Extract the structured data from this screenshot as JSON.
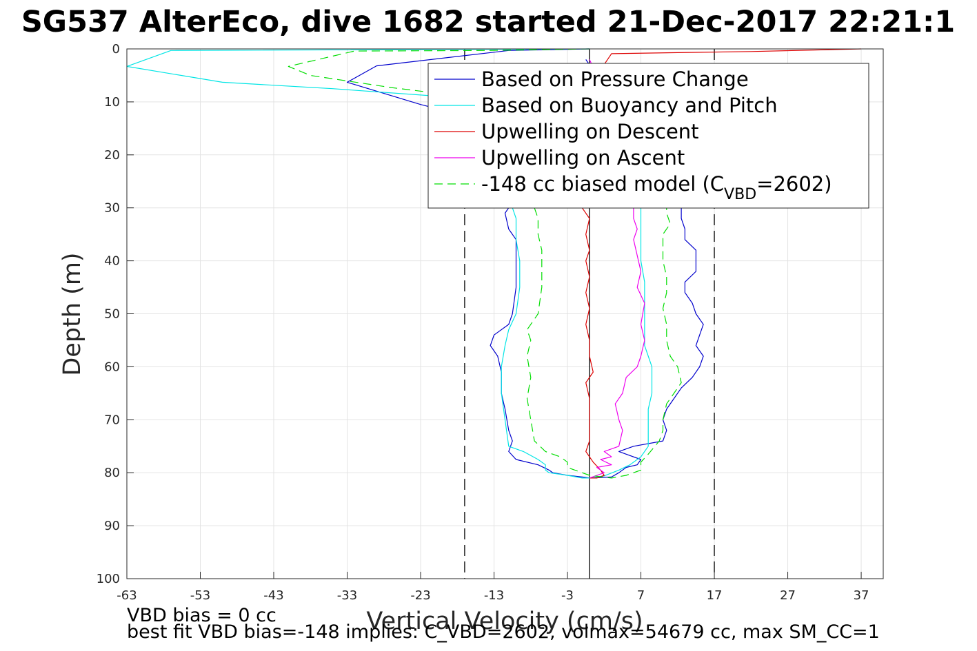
{
  "chart_data": {
    "type": "line",
    "title": "SG537 AlterEco, dive 1682 started 21-Dec-2017 22:21:1",
    "xlabel": "Vertical Velocity (cm/s)",
    "ylabel": "Depth (m)",
    "xlim": [
      -63,
      40
    ],
    "ylim": [
      0,
      100
    ],
    "y_reversed": true,
    "grid": true,
    "legend_position": "top-right",
    "xticks": [
      "-63",
      "-53",
      "-43",
      "-33",
      "-23",
      "-13",
      "-3",
      "7",
      "17",
      "27",
      "37"
    ],
    "xtick_values": [
      -63,
      -53,
      -43,
      -33,
      -23,
      -13,
      -3,
      7,
      17,
      27,
      37
    ],
    "yticks": [
      "0",
      "10",
      "20",
      "30",
      "40",
      "50",
      "60",
      "70",
      "80",
      "90",
      "100"
    ],
    "ytick_values": [
      0,
      10,
      20,
      30,
      40,
      50,
      60,
      70,
      80,
      90,
      100
    ],
    "vertical_lines": [
      {
        "x": -17,
        "style": "dashed",
        "color": "#000000"
      },
      {
        "x": 0,
        "style": "solid",
        "color": "#000000"
      },
      {
        "x": 17,
        "style": "dashed",
        "color": "#000000"
      }
    ],
    "series": [
      {
        "name": "Based on Pressure Change",
        "color": "#0000cc",
        "dash": "solid",
        "points": [
          [
            0,
            0
          ],
          [
            -11,
            0.3
          ],
          [
            -29,
            3.2
          ],
          [
            -33,
            6.3
          ],
          [
            -23,
            10.5
          ],
          [
            -13,
            14
          ],
          [
            -12,
            22
          ],
          [
            -11,
            28
          ],
          [
            -11,
            30
          ],
          [
            -11.5,
            31
          ],
          [
            -11,
            34
          ],
          [
            -10,
            36
          ],
          [
            -10,
            40
          ],
          [
            -10,
            45
          ],
          [
            -10.5,
            50
          ],
          [
            -11,
            52
          ],
          [
            -13,
            54
          ],
          [
            -13.5,
            56
          ],
          [
            -12.5,
            58
          ],
          [
            -12,
            61
          ],
          [
            -12,
            65
          ],
          [
            -11.5,
            68
          ],
          [
            -11,
            72
          ],
          [
            -10.5,
            74
          ],
          [
            -11,
            76
          ],
          [
            -10,
            77.5
          ],
          [
            -7,
            78.5
          ],
          [
            -5.5,
            79.5
          ],
          [
            -5,
            80
          ],
          [
            -3,
            80.5
          ],
          [
            -1,
            80.8
          ],
          [
            0,
            81
          ],
          [
            3,
            80.8
          ],
          [
            4,
            80
          ],
          [
            5,
            79
          ],
          [
            6.5,
            78.5
          ],
          [
            7,
            77.5
          ],
          [
            5,
            76.5
          ],
          [
            4,
            76
          ],
          [
            6,
            75
          ],
          [
            10,
            74
          ],
          [
            10.5,
            72
          ],
          [
            10,
            70
          ],
          [
            10.5,
            68
          ],
          [
            11.5,
            66
          ],
          [
            12.5,
            64
          ],
          [
            14,
            62
          ],
          [
            15,
            60
          ],
          [
            15.5,
            58
          ],
          [
            14.5,
            56
          ],
          [
            15,
            54
          ],
          [
            15.5,
            52
          ],
          [
            14.5,
            50
          ],
          [
            14,
            48
          ],
          [
            13,
            46
          ],
          [
            13,
            44
          ],
          [
            14.5,
            42
          ],
          [
            14.5,
            40
          ],
          [
            14.5,
            38
          ],
          [
            13,
            36
          ],
          [
            13,
            34
          ],
          [
            12.5,
            32
          ],
          [
            12.5,
            30
          ],
          [
            12,
            24
          ],
          [
            2,
            10
          ],
          [
            0,
            3
          ],
          [
            -0.5,
            2
          ]
        ]
      },
      {
        "name": "Based on Buoyancy and Pitch",
        "color": "#00e5e5",
        "dash": "solid",
        "points": [
          [
            0,
            0
          ],
          [
            -57,
            0.3
          ],
          [
            -63,
            3.3
          ],
          [
            -50,
            6.3
          ],
          [
            -35,
            7.5
          ],
          [
            -20,
            9
          ],
          [
            -13,
            15
          ],
          [
            -11,
            22
          ],
          [
            -10.5,
            28
          ],
          [
            -10.5,
            30
          ],
          [
            -10,
            32
          ],
          [
            -10,
            36
          ],
          [
            -9.5,
            40
          ],
          [
            -9.5,
            45
          ],
          [
            -10,
            50
          ],
          [
            -11,
            53
          ],
          [
            -11.5,
            56
          ],
          [
            -12,
            60
          ],
          [
            -12,
            65
          ],
          [
            -11.5,
            70
          ],
          [
            -11,
            75
          ],
          [
            -9,
            76
          ],
          [
            -7,
            77.5
          ],
          [
            -6,
            78.5
          ],
          [
            -6,
            79.5
          ],
          [
            -5.5,
            80
          ],
          [
            -3,
            80.5
          ],
          [
            -1,
            81
          ],
          [
            0,
            81
          ],
          [
            2,
            80.6
          ],
          [
            4,
            79.5
          ],
          [
            5.5,
            78.5
          ],
          [
            7,
            77
          ],
          [
            8,
            75
          ],
          [
            8,
            72
          ],
          [
            8,
            68
          ],
          [
            8.5,
            65
          ],
          [
            8.5,
            60
          ],
          [
            7.5,
            56
          ],
          [
            7.5,
            52
          ],
          [
            7.5,
            48
          ],
          [
            7.5,
            44
          ],
          [
            7,
            40
          ],
          [
            7,
            36
          ],
          [
            7,
            32
          ],
          [
            7,
            30
          ],
          [
            6,
            20
          ],
          [
            1,
            8
          ],
          [
            0,
            3
          ]
        ]
      },
      {
        "name": "Upwelling on Descent",
        "color": "#dd0000",
        "dash": "solid",
        "points": [
          [
            37,
            0
          ],
          [
            22,
            0.5
          ],
          [
            12,
            0.7
          ],
          [
            3,
            0.9
          ],
          [
            1,
            5
          ],
          [
            0,
            15
          ],
          [
            0,
            25
          ],
          [
            -1,
            30
          ],
          [
            0,
            32
          ],
          [
            -0.5,
            35
          ],
          [
            0,
            38
          ],
          [
            -0.5,
            40
          ],
          [
            0,
            43
          ],
          [
            -0.5,
            46
          ],
          [
            0,
            49
          ],
          [
            -0.5,
            52
          ],
          [
            0,
            55
          ],
          [
            0,
            58
          ],
          [
            0.5,
            61
          ],
          [
            -0.5,
            63
          ],
          [
            0,
            66
          ],
          [
            0,
            70
          ],
          [
            0,
            74
          ],
          [
            -0.5,
            76
          ],
          [
            0.5,
            78
          ],
          [
            1.5,
            79.5
          ],
          [
            2,
            80.5
          ],
          [
            1,
            81
          ],
          [
            0,
            81
          ]
        ]
      },
      {
        "name": "Upwelling on Ascent",
        "color": "#ee00ee",
        "dash": "solid",
        "points": [
          [
            0,
            81
          ],
          [
            2,
            80
          ],
          [
            1,
            79
          ],
          [
            3,
            78.5
          ],
          [
            1.5,
            77.5
          ],
          [
            3,
            77
          ],
          [
            2,
            76
          ],
          [
            4,
            75
          ],
          [
            4.5,
            72
          ],
          [
            4,
            70
          ],
          [
            3.5,
            67
          ],
          [
            4.5,
            65
          ],
          [
            5,
            62
          ],
          [
            6.5,
            60
          ],
          [
            7,
            58
          ],
          [
            7.5,
            55
          ],
          [
            7,
            52
          ],
          [
            7.5,
            48
          ],
          [
            6.5,
            45
          ],
          [
            7,
            42
          ],
          [
            6.5,
            39
          ],
          [
            6,
            36
          ],
          [
            6.5,
            34
          ],
          [
            6,
            32
          ],
          [
            6,
            30
          ],
          [
            5,
            20
          ],
          [
            1,
            5
          ],
          [
            0,
            2
          ]
        ]
      },
      {
        "name": "-148 cc biased model (C_VBD=2602)",
        "color": "#00dd00",
        "dash": "dashed",
        "points": [
          [
            0,
            0
          ],
          [
            -14,
            0.3
          ],
          [
            -32,
            0.4
          ],
          [
            -41,
            3.3
          ],
          [
            -38,
            5
          ],
          [
            -27,
            7.3
          ],
          [
            -17,
            9
          ],
          [
            -10,
            14
          ],
          [
            -8,
            22
          ],
          [
            -7,
            28
          ],
          [
            -7.5,
            30
          ],
          [
            -7,
            32
          ],
          [
            -7,
            35
          ],
          [
            -6.5,
            38
          ],
          [
            -6.5,
            40
          ],
          [
            -6.5,
            45
          ],
          [
            -7,
            50
          ],
          [
            -8.5,
            53
          ],
          [
            -8,
            55
          ],
          [
            -8.5,
            58
          ],
          [
            -8,
            62
          ],
          [
            -8.5,
            66
          ],
          [
            -8,
            70
          ],
          [
            -7.5,
            74
          ],
          [
            -6,
            76
          ],
          [
            -4,
            77
          ],
          [
            -3,
            78
          ],
          [
            -3,
            79
          ],
          [
            -1,
            80
          ],
          [
            0,
            80.5
          ],
          [
            3,
            81
          ],
          [
            5,
            80.5
          ],
          [
            7,
            79.5
          ],
          [
            7,
            78
          ],
          [
            8,
            76.5
          ],
          [
            9.5,
            74
          ],
          [
            10,
            72
          ],
          [
            10,
            70
          ],
          [
            10.5,
            67
          ],
          [
            11.5,
            65
          ],
          [
            12.5,
            63
          ],
          [
            12,
            60
          ],
          [
            11,
            58
          ],
          [
            10.5,
            55
          ],
          [
            10.5,
            52
          ],
          [
            10,
            49
          ],
          [
            10.5,
            46
          ],
          [
            10.5,
            43
          ],
          [
            10,
            40
          ],
          [
            10,
            37
          ],
          [
            10,
            35
          ],
          [
            11,
            33
          ],
          [
            10.5,
            31
          ],
          [
            10.5,
            30
          ],
          [
            9,
            20
          ],
          [
            2,
            8
          ],
          [
            0,
            3
          ]
        ]
      }
    ],
    "legend_label_main": "-148 cc biased model (C",
    "legend_label_sub": "VBD",
    "legend_label_tail": "=2602)"
  },
  "notes": {
    "vbd_bias": "VBD bias = 0 cc",
    "best_fit": "best fit VBD bias=-148 implies: C_VBD=2602, volmax=54679 cc, max SM_CC=1"
  }
}
